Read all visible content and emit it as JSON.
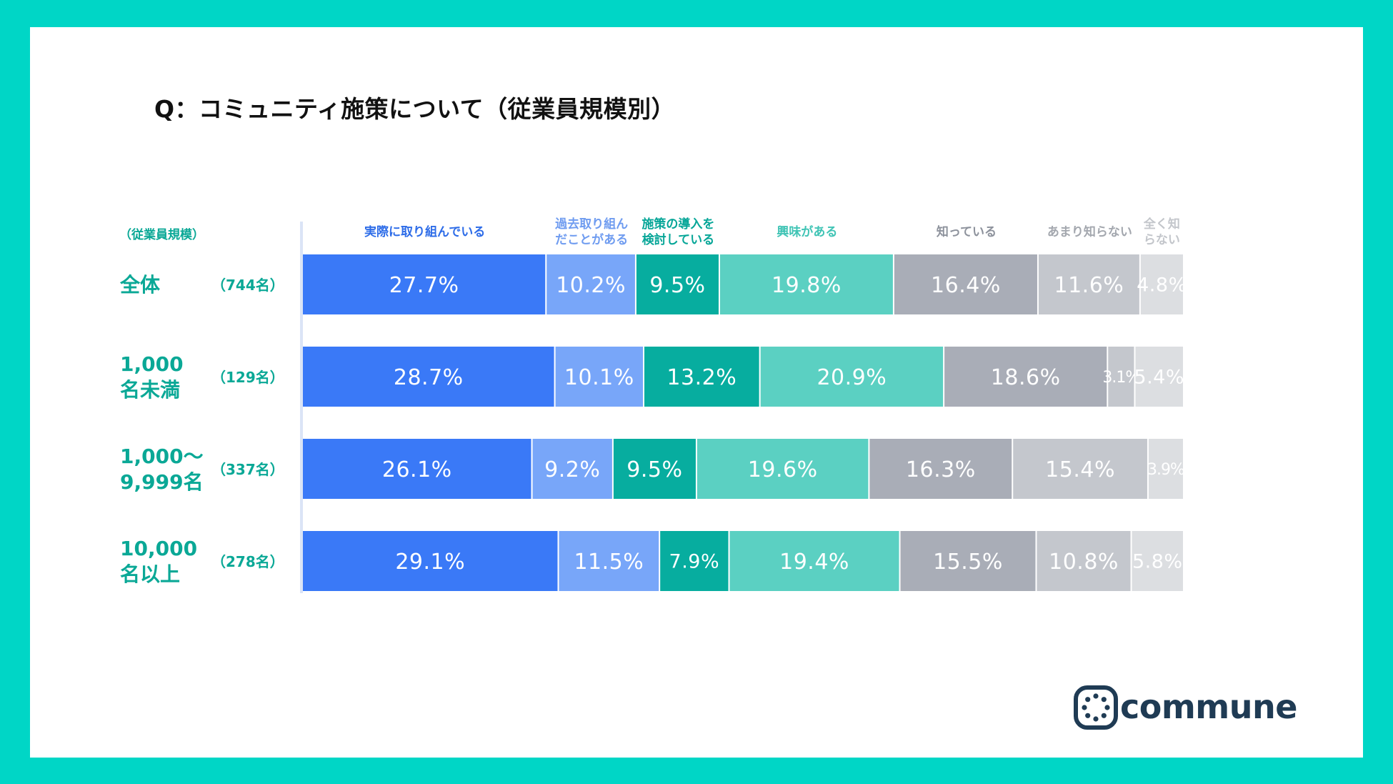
{
  "title": "Q：コミュニティ施策について（従業員規模別）",
  "chart_data": {
    "type": "bar",
    "orientation": "horizontal",
    "stacked": "100%",
    "title": "Q：コミュニティ施策について（従業員規模別）",
    "row_header": "（従業員規模）",
    "categories": [
      {
        "label_lines": [
          "全体"
        ],
        "n": "（744名）"
      },
      {
        "label_lines": [
          "1,000",
          "名未満"
        ],
        "n": "（129名）"
      },
      {
        "label_lines": [
          "1,000～",
          "9,999名"
        ],
        "n": "（337名）"
      },
      {
        "label_lines": [
          "10,000",
          "名以上"
        ],
        "n": "（278名）"
      }
    ],
    "series": [
      {
        "name": "実際に取り組んでいる",
        "name_lines": [
          "実際に取り組んでいる"
        ],
        "color": "#3a79f7",
        "header_color": "#2d6ce8",
        "values": [
          27.7,
          28.7,
          26.1,
          29.1
        ]
      },
      {
        "name": "過去取り組んだことがある",
        "name_lines": [
          "過去取り組ん",
          "だことがある"
        ],
        "color": "#78a6f9",
        "header_color": "#6f9cf0",
        "values": [
          10.2,
          10.1,
          9.2,
          11.5
        ]
      },
      {
        "name": "施策の導入を検討している",
        "name_lines": [
          "施策の導入を",
          "検討している"
        ],
        "color": "#07ad9f",
        "header_color": "#07a698",
        "values": [
          9.5,
          13.2,
          9.5,
          7.9
        ]
      },
      {
        "name": "興味がある",
        "name_lines": [
          "興味がある"
        ],
        "color": "#5bd0c2",
        "header_color": "#40c4b5",
        "values": [
          19.8,
          20.9,
          19.6,
          19.4
        ]
      },
      {
        "name": "知っている",
        "name_lines": [
          "知っている"
        ],
        "color": "#a9adb7",
        "header_color": "#8d929c",
        "values": [
          16.4,
          18.6,
          16.3,
          15.5
        ]
      },
      {
        "name": "あまり知らない",
        "name_lines": [
          "あまり知らない"
        ],
        "color": "#c4c7cd",
        "header_color": "#a3a7ae",
        "values": [
          11.6,
          3.1,
          15.4,
          10.8
        ]
      },
      {
        "name": "全く知らない",
        "name_lines": [
          "全く知",
          "らない"
        ],
        "color": "#dcdee1",
        "header_color": "#c3c6cb",
        "values": [
          4.8,
          5.4,
          3.9,
          5.8
        ]
      }
    ],
    "value_format": "{v}%",
    "legend": "top (column headers above bars)",
    "xlim": [
      0,
      100
    ]
  },
  "logo": {
    "text": "commune",
    "icon": "commune-logo-icon",
    "color": "#1f3b54"
  },
  "colors": {
    "frame": "#00d6c6",
    "category_label": "#0aa896",
    "background": "#ffffff"
  }
}
